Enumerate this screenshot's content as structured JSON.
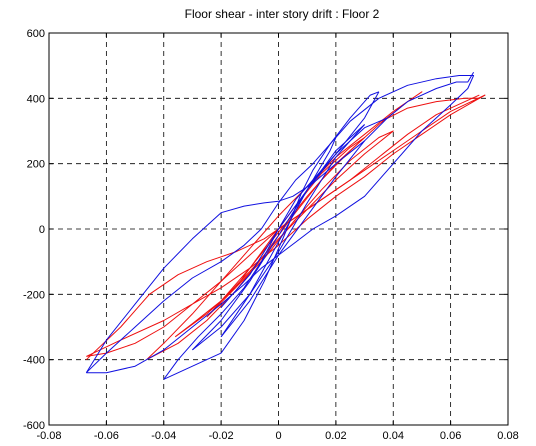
{
  "chart_data": {
    "type": "line",
    "title": "Floor shear - inter story drift : Floor 2",
    "xlabel": "",
    "ylabel": "",
    "xlim": [
      -0.08,
      0.08
    ],
    "ylim": [
      -600,
      600
    ],
    "x_ticks": [
      -0.08,
      -0.06,
      -0.04,
      -0.02,
      0,
      0.02,
      0.04,
      0.06,
      0.08
    ],
    "y_ticks": [
      -600,
      -400,
      -200,
      0,
      200,
      400,
      600
    ],
    "x_tick_labels": [
      "-0.08",
      "-0.06",
      "-0.04",
      "-0.02",
      "0",
      "0.02",
      "0.04",
      "0.06",
      "0.08"
    ],
    "y_tick_labels": [
      "-600",
      "-400",
      "-200",
      "0",
      "200",
      "400",
      "600"
    ],
    "grid": "dashed",
    "legend": "none",
    "series": [
      {
        "color": "#1010e0",
        "loops": [
          {
            "x": [
              -0.067,
              -0.06,
              -0.05,
              -0.04,
              -0.03,
              -0.02,
              -0.012,
              -0.006,
              0,
              0.006,
              0.012,
              0.018,
              0.025,
              0.035,
              0.045,
              0.055,
              0.063,
              0.068,
              0.066,
              0.06,
              0.05,
              0.04,
              0.03,
              0.02,
              0.012,
              0.006,
              0,
              -0.006,
              -0.012,
              -0.02,
              -0.03,
              -0.04,
              -0.05,
              -0.06,
              -0.067
            ],
            "y": [
              -440,
              -380,
              -300,
              -220,
              -150,
              -100,
              -50,
              0,
              80,
              150,
              200,
              260,
              330,
              400,
              440,
              460,
              470,
              470,
              430,
              380,
              300,
              200,
              100,
              40,
              0,
              -40,
              -80,
              -120,
              -170,
              -230,
              -300,
              -370,
              -420,
              -440,
              -440
            ]
          },
          {
            "x": [
              -0.067,
              -0.06,
              -0.05,
              -0.04,
              -0.03,
              -0.02,
              -0.012,
              -0.005,
              0,
              0.005,
              0.012,
              0.02,
              0.03
            ],
            "y": [
              -440,
              -340,
              -230,
              -120,
              -30,
              50,
              70,
              80,
              85,
              100,
              140,
              200,
              270
            ]
          },
          {
            "x": [
              -0.04,
              -0.03,
              -0.02,
              -0.012,
              -0.005,
              0.002,
              0.008,
              0.012,
              0.018,
              0.025,
              0.032,
              0.035
            ],
            "y": [
              -460,
              -420,
              -380,
              -280,
              -160,
              -20,
              110,
              180,
              260,
              340,
              410,
              420
            ]
          },
          {
            "x": [
              0.035,
              0.03,
              0.02,
              0.012,
              0.006,
              0,
              -0.006,
              -0.012,
              -0.02,
              -0.028,
              -0.035,
              -0.04
            ],
            "y": [
              420,
              340,
              230,
              150,
              90,
              0,
              -100,
              -180,
              -260,
              -330,
              -400,
              -460
            ]
          },
          {
            "x": [
              -0.03,
              -0.02,
              -0.01,
              0,
              0.01,
              0.02,
              0.028,
              0.03
            ],
            "y": [
              -370,
              -300,
              -200,
              -70,
              80,
              220,
              300,
              320
            ]
          },
          {
            "x": [
              0.03,
              0.02,
              0.01,
              0,
              -0.01,
              -0.02,
              -0.03
            ],
            "y": [
              320,
              240,
              120,
              -20,
              -160,
              -280,
              -370
            ]
          },
          {
            "x": [
              -0.02,
              -0.01,
              0,
              0.01,
              0.02,
              0.03,
              0.038
            ],
            "y": [
              -330,
              -200,
              -40,
              120,
              230,
              310,
              340
            ]
          },
          {
            "x": [
              0.038,
              0.03,
              0.02,
              0.01,
              0,
              -0.01,
              -0.02
            ],
            "y": [
              340,
              270,
              160,
              40,
              -80,
              -220,
              -330
            ]
          },
          {
            "x": [
              0.038,
              0.045,
              0.055,
              0.062,
              0.066,
              0.068
            ],
            "y": [
              340,
              390,
              430,
              450,
              450,
              480
            ]
          },
          {
            "x": [
              -0.02,
              -0.01,
              0,
              0.01,
              0.018,
              0.02
            ],
            "y": [
              -240,
              -140,
              0,
              120,
              240,
              280
            ]
          }
        ]
      },
      {
        "color": "#ee1010",
        "loops": [
          {
            "x": [
              -0.067,
              -0.055,
              -0.04,
              -0.03,
              -0.02,
              -0.01,
              0,
              0.01,
              0.02,
              0.03,
              0.04,
              0.05,
              0.06,
              0.07,
              0.072,
              0.06,
              0.05,
              0.04,
              0.03,
              0.02,
              0.01,
              0,
              -0.01,
              -0.02,
              -0.03,
              -0.04,
              -0.05,
              -0.06,
              -0.067
            ],
            "y": [
              -390,
              -340,
              -280,
              -230,
              -180,
              -120,
              -50,
              30,
              100,
              160,
              230,
              290,
              350,
              400,
              410,
              360,
              300,
              240,
              180,
              120,
              60,
              0,
              -80,
              -160,
              -230,
              -300,
              -350,
              -380,
              -390
            ]
          },
          {
            "x": [
              -0.067,
              -0.055,
              -0.045,
              -0.035,
              -0.025,
              -0.015,
              -0.005,
              0.005,
              0.015,
              0.025,
              0.035,
              0.045,
              0.055,
              0.065,
              0.07
            ],
            "y": [
              -400,
              -300,
              -200,
              -140,
              -100,
              -70,
              -30,
              30,
              90,
              150,
              220,
              290,
              350,
              390,
              410
            ]
          },
          {
            "x": [
              -0.046,
              -0.035,
              -0.025,
              -0.015,
              -0.005,
              0.005,
              0.015,
              0.025,
              0.035,
              0.045,
              0.05,
              0.04,
              0.03,
              0.02,
              0.01,
              0,
              -0.01,
              -0.02,
              -0.03,
              -0.04,
              -0.046
            ],
            "y": [
              -400,
              -350,
              -280,
              -190,
              -80,
              40,
              150,
              240,
              320,
              390,
              420,
              360,
              290,
              220,
              130,
              40,
              -60,
              -160,
              -260,
              -350,
              -400
            ]
          },
          {
            "x": [
              -0.036,
              -0.025,
              -0.015,
              -0.005,
              0.005,
              0.015,
              0.025,
              0.035,
              0.04,
              0.03,
              0.02,
              0.01,
              0,
              -0.01,
              -0.02,
              -0.03,
              -0.036
            ],
            "y": [
              -330,
              -260,
              -180,
              -90,
              20,
              120,
              210,
              280,
              300,
              230,
              150,
              60,
              -30,
              -130,
              -220,
              -290,
              -330
            ]
          },
          {
            "x": [
              -0.025,
              -0.015,
              -0.005,
              0.005,
              0.015,
              0.025,
              0.03,
              0.02,
              0.01,
              0,
              -0.01,
              -0.02,
              -0.025
            ],
            "y": [
              -270,
              -180,
              -60,
              60,
              170,
              250,
              280,
              200,
              100,
              -10,
              -120,
              -220,
              -270
            ]
          },
          {
            "x": [
              0.036,
              0.045,
              0.055,
              0.065,
              0.07,
              0.072
            ],
            "y": [
              330,
              370,
              390,
              400,
              400,
              410
            ]
          }
        ]
      }
    ]
  }
}
